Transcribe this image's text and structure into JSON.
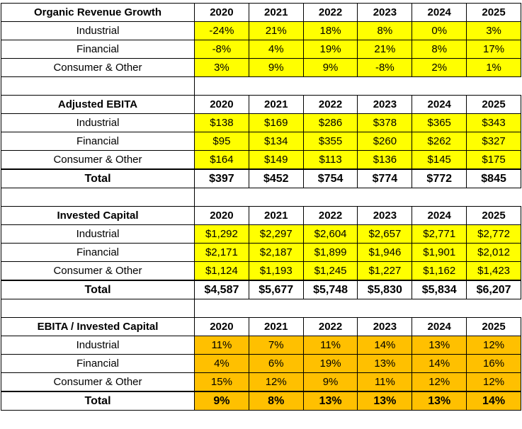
{
  "sections": [
    {
      "title": "Organic Revenue Growth",
      "years": [
        "2020",
        "2021",
        "2022",
        "2023",
        "2024",
        "2025"
      ],
      "rows": [
        {
          "label": "Industrial",
          "values": [
            "-24%",
            "21%",
            "18%",
            "8%",
            "0%",
            "3%"
          ]
        },
        {
          "label": "Financial",
          "values": [
            "-8%",
            "4%",
            "19%",
            "21%",
            "8%",
            "17%"
          ]
        },
        {
          "label": "Consumer & Other",
          "values": [
            "3%",
            "9%",
            "9%",
            "-8%",
            "2%",
            "1%"
          ]
        }
      ]
    },
    {
      "title": "Adjusted EBITA",
      "years": [
        "2020",
        "2021",
        "2022",
        "2023",
        "2024",
        "2025"
      ],
      "rows": [
        {
          "label": "Industrial",
          "values": [
            "$138",
            "$169",
            "$286",
            "$378",
            "$365",
            "$343"
          ]
        },
        {
          "label": "Financial",
          "values": [
            "$95",
            "$134",
            "$355",
            "$260",
            "$262",
            "$327"
          ]
        },
        {
          "label": "Consumer & Other",
          "values": [
            "$164",
            "$149",
            "$113",
            "$136",
            "$145",
            "$175"
          ]
        }
      ],
      "total": {
        "label": "Total",
        "values": [
          "$397",
          "$452",
          "$754",
          "$774",
          "$772",
          "$845"
        ]
      }
    },
    {
      "title": "Invested Capital",
      "years": [
        "2020",
        "2021",
        "2022",
        "2023",
        "2024",
        "2025"
      ],
      "rows": [
        {
          "label": "Industrial",
          "values": [
            "$1,292",
            "$2,297",
            "$2,604",
            "$2,657",
            "$2,771",
            "$2,772"
          ]
        },
        {
          "label": "Financial",
          "values": [
            "$2,171",
            "$2,187",
            "$1,899",
            "$1,946",
            "$1,901",
            "$2,012"
          ]
        },
        {
          "label": "Consumer & Other",
          "values": [
            "$1,124",
            "$1,193",
            "$1,245",
            "$1,227",
            "$1,162",
            "$1,423"
          ]
        }
      ],
      "total": {
        "label": "Total",
        "values": [
          "$4,587",
          "$5,677",
          "$5,748",
          "$5,830",
          "$5,834",
          "$6,207"
        ]
      }
    },
    {
      "title": "EBITA / Invested Capital",
      "years": [
        "2020",
        "2021",
        "2022",
        "2023",
        "2024",
        "2025"
      ],
      "rows": [
        {
          "label": "Industrial",
          "values": [
            "11%",
            "7%",
            "11%",
            "14%",
            "13%",
            "12%"
          ]
        },
        {
          "label": "Financial",
          "values": [
            "4%",
            "6%",
            "19%",
            "13%",
            "14%",
            "16%"
          ]
        },
        {
          "label": "Consumer & Other",
          "values": [
            "15%",
            "12%",
            "9%",
            "11%",
            "12%",
            "12%"
          ]
        }
      ],
      "total": {
        "label": "Total",
        "values": [
          "9%",
          "8%",
          "13%",
          "13%",
          "13%",
          "14%"
        ]
      }
    }
  ]
}
